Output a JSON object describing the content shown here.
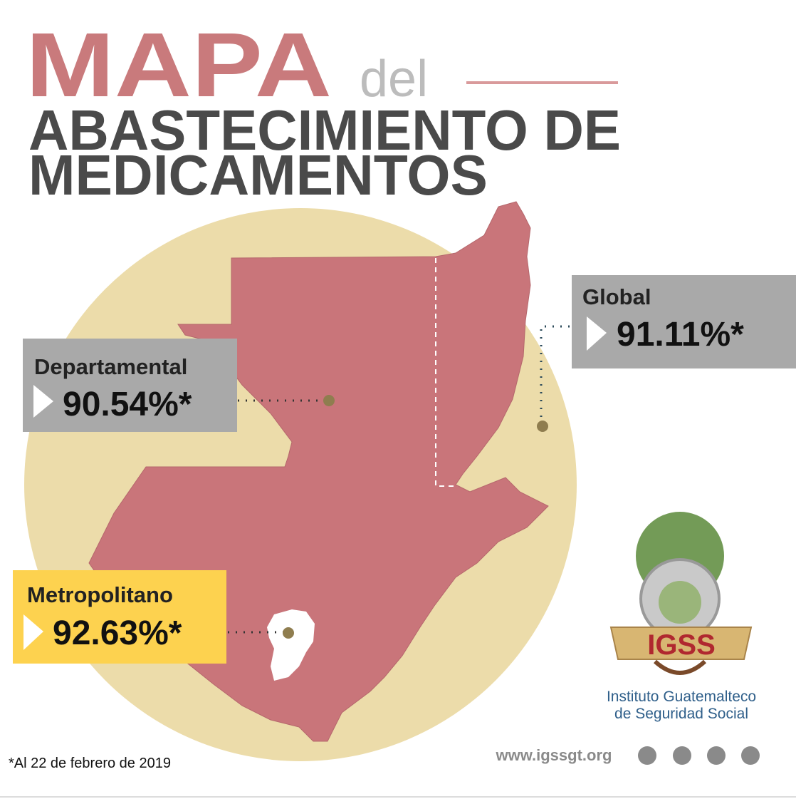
{
  "header": {
    "title": "MAPA",
    "connector": "del",
    "subtitle_lines": [
      "ABASTECIMIENTO DE",
      "MEDICAMENTOS"
    ]
  },
  "regions": [
    {
      "name": "Departamental",
      "value": "90.54%*"
    },
    {
      "name": "Global",
      "value": "91.11%*"
    },
    {
      "name": "Metropolitano",
      "value": "92.63%*"
    }
  ],
  "footnote": "*Al 22 de febrero de 2019",
  "logo": {
    "acronym": "IGSS",
    "name_lines": [
      "Instituto Guatemalteco",
      "de Seguridad Social"
    ]
  },
  "website": "www.igssgt.org"
}
